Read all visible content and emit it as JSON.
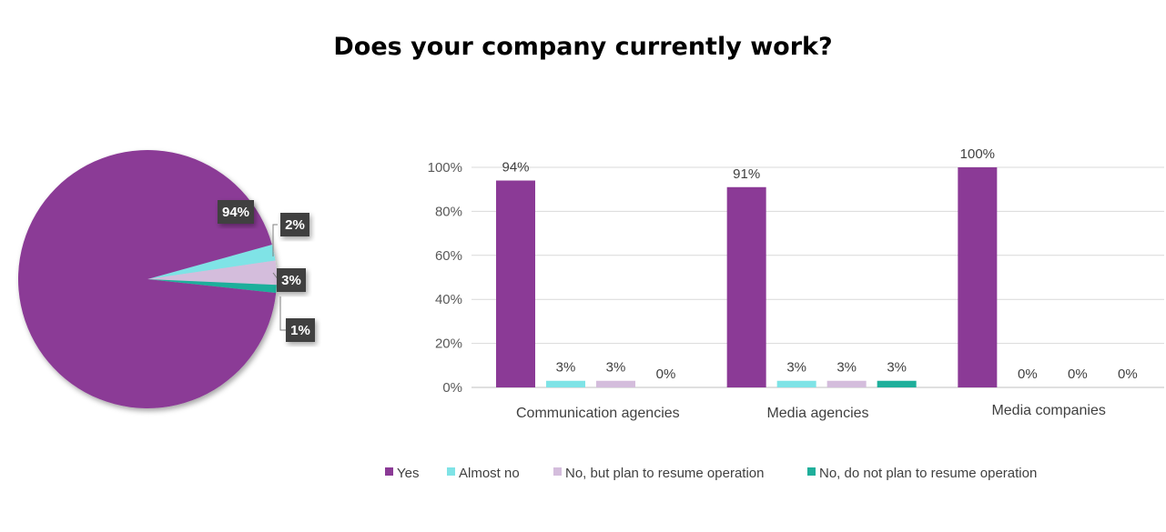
{
  "title": "Does your company currently work?",
  "colors": {
    "yes": "#8B3A96",
    "almost_no": "#7FE3E6",
    "plan_resume": "#D4BDDC",
    "no_plan": "#1FAF9B"
  },
  "chart_data": [
    {
      "type": "pie",
      "title": "",
      "slices": [
        {
          "name": "Yes",
          "value": 94,
          "label": "94%"
        },
        {
          "name": "Almost no",
          "value": 2,
          "label": "2%"
        },
        {
          "name": "No, but plan to resume operation",
          "value": 3,
          "label": "3%"
        },
        {
          "name": "No, do not plan to resume operation",
          "value": 1,
          "label": "1%"
        }
      ]
    },
    {
      "type": "bar",
      "title": "",
      "categories": [
        "Communication agencies",
        "Media agencies",
        "Media companies"
      ],
      "series": [
        {
          "name": "Yes",
          "values": [
            94,
            91,
            100
          ],
          "labels": [
            "94%",
            "91%",
            "100%"
          ]
        },
        {
          "name": "Almost no",
          "values": [
            3,
            3,
            0
          ],
          "labels": [
            "3%",
            "3%",
            "0%"
          ]
        },
        {
          "name": "No, but plan to resume operation",
          "values": [
            3,
            3,
            0
          ],
          "labels": [
            "3%",
            "3%",
            "0%"
          ]
        },
        {
          "name": "No, do not plan to resume operation",
          "values": [
            0,
            3,
            0
          ],
          "labels": [
            "0%",
            "3%",
            "0%"
          ]
        }
      ],
      "yticks": [
        "0%",
        "20%",
        "40%",
        "60%",
        "80%",
        "100%"
      ],
      "ylim": [
        0,
        100
      ],
      "grid": true,
      "legend": "bottom"
    }
  ]
}
